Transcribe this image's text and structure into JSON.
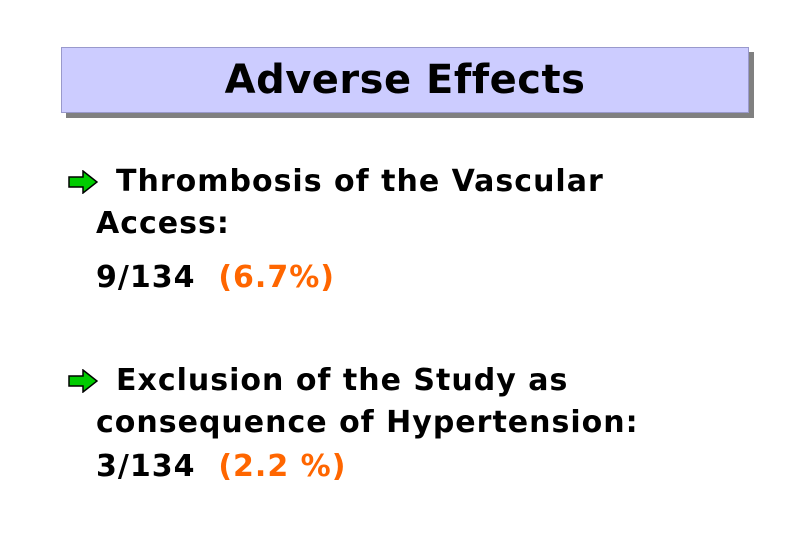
{
  "slide": {
    "title": "Adverse Effects",
    "accent_color": "#ff6600",
    "title_bg_color": "#ccccff",
    "bullet_icon": "arrow-right-icon",
    "bullet_color": "#00cc00",
    "items": [
      {
        "line1": "Thrombosis of the Vascular",
        "line2": "Access:",
        "count": "9/134",
        "percent": "(6.7%)"
      },
      {
        "line1": "Exclusion of the Study as",
        "line2": "consequence of Hypertension:",
        "count": "3/134",
        "percent": "(2.2 %)"
      }
    ]
  }
}
